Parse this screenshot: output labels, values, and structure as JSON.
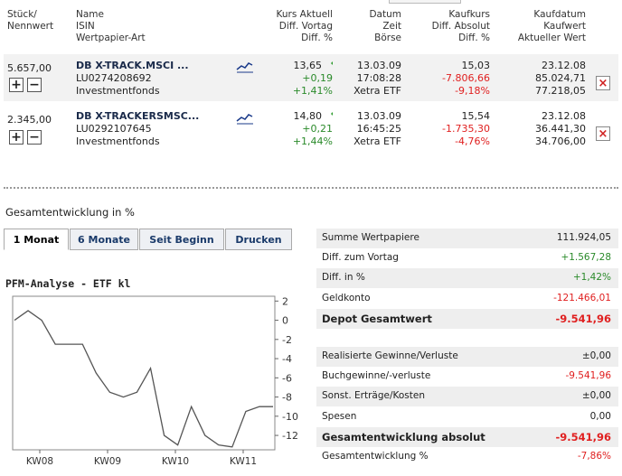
{
  "header": {
    "col1": [
      "Stück/",
      "Nennwert"
    ],
    "col2": [
      "Name",
      "ISIN",
      "Wertpapier-Art"
    ],
    "col3": [
      "Kurs Aktuell",
      "Diff. Vortag",
      "Diff. %"
    ],
    "col4": [
      "Datum",
      "Zeit",
      "Börse"
    ],
    "col5": [
      "Kaufkurs",
      "Diff. Absolut",
      "Diff. %"
    ],
    "col6": [
      "Kaufdatum",
      "Kaufwert",
      "Aktueller Wert"
    ]
  },
  "positions": [
    {
      "qty": "5.657,00",
      "name": "DB X-TRACK.MSCI ...",
      "isin": "LU0274208692",
      "type": "Investmentfonds",
      "kurs": "13,65",
      "diff_vortag": "+0,19",
      "diff_pct": "+1,41%",
      "datum": "13.03.09",
      "zeit": "17:08:28",
      "boerse": "Xetra ETF",
      "kaufkurs": "15,03",
      "diff_abs": "-7.806,66",
      "diff_abs_pct": "-9,18%",
      "kaufdatum": "23.12.08",
      "kaufwert": "85.024,71",
      "aktueller_wert": "77.218,05"
    },
    {
      "qty": "2.345,00",
      "name": "DB X-TRACKERSMSC...",
      "isin": "LU0292107645",
      "type": "Investmentfonds",
      "kurs": "14,80",
      "diff_vortag": "+0,21",
      "diff_pct": "+1,44%",
      "datum": "13.03.09",
      "zeit": "16:45:25",
      "boerse": "Xetra ETF",
      "kaufkurs": "15,54",
      "diff_abs": "-1.735,30",
      "diff_abs_pct": "-4,76%",
      "kaufdatum": "23.12.08",
      "kaufwert": "36.441,30",
      "aktueller_wert": "34.706,00"
    }
  ],
  "buttons": {
    "plus": "+",
    "minus": "−",
    "remove": "×"
  },
  "section_title": "Gesamtentwicklung in %",
  "tabs": [
    "1 Monat",
    "6 Monate",
    "Seit Beginn",
    "Drucken"
  ],
  "chart_data": {
    "type": "line",
    "title": "PFM-Analyse - ETF kl",
    "x_ticks": [
      "KW08",
      "KW09",
      "KW10",
      "KW11"
    ],
    "y_ticks": [
      2,
      0,
      -2,
      -4,
      -6,
      -8,
      -10,
      -12
    ],
    "ylim": [
      -13.5,
      2.5
    ],
    "series": [
      {
        "values": [
          0,
          1,
          0,
          -2.5,
          -2.5,
          -2.5,
          -5.5,
          -7.5,
          -8,
          -7.5,
          -5,
          -12,
          -13,
          -9,
          -12,
          -13,
          -13.2,
          -9.5,
          -9,
          -9
        ]
      }
    ]
  },
  "summary": [
    {
      "label": "Summe Wertpapiere",
      "value": "111.924,05",
      "style": "normal"
    },
    {
      "label": "Diff. zum Vortag",
      "value": "+1.567,28",
      "style": "green"
    },
    {
      "label": "Diff. in %",
      "value": "+1,42%",
      "style": "green"
    },
    {
      "label": "Geldkonto",
      "value": "-121.466,01",
      "style": "red"
    },
    {
      "label": "Depot Gesamtwert",
      "value": "-9.541,96",
      "style": "boldred"
    }
  ],
  "summary2": [
    {
      "label": "Realisierte Gewinne/Verluste",
      "value": "±0,00",
      "style": "normal"
    },
    {
      "label": "Buchgewinne/-verluste",
      "value": "-9.541,96",
      "style": "red"
    },
    {
      "label": "Sonst. Erträge/Kosten",
      "value": "±0,00",
      "style": "normal"
    },
    {
      "label": "Spesen",
      "value": "0,00",
      "style": "normal"
    },
    {
      "label": "Gesamtentwicklung absolut",
      "value": "-9.541,96",
      "style": "boldred"
    },
    {
      "label": "Gesamtentwicklung %",
      "value": "-7,86%",
      "style": "red"
    }
  ],
  "colors": {
    "green": "#2a8a2a",
    "red": "#e02020",
    "row_bg": "#f2f2f2",
    "tab_text": "#1a3a6a"
  }
}
